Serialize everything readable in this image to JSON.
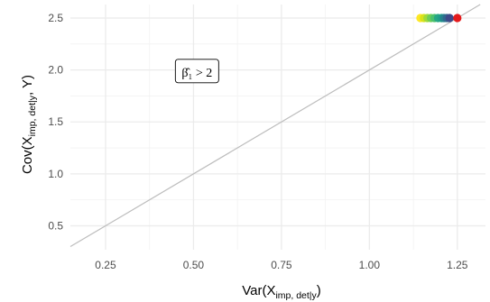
{
  "chart_data": {
    "type": "scatter",
    "title": "",
    "xlabel": {
      "main": "Var(X",
      "sub": "imp, det|y",
      "close": ")"
    },
    "ylabel": {
      "main": "Cov(X",
      "sub": "imp, det|y",
      "close": ", Y)"
    },
    "xlim": [
      0.15,
      1.33
    ],
    "ylim": [
      0.27,
      2.63
    ],
    "x_ticks": [
      0.25,
      0.5,
      0.75,
      1.0,
      1.25
    ],
    "x_tick_labels": [
      "0.25",
      "0.50",
      "0.75",
      "1.00",
      "1.25"
    ],
    "y_ticks": [
      0.5,
      1.0,
      1.5,
      2.0,
      2.5
    ],
    "y_tick_labels": [
      "0.5",
      "1.0",
      "1.5",
      "2.0",
      "2.5"
    ],
    "grid": true,
    "reference_line": {
      "type": "y = 2x",
      "slope": 2,
      "intercept": 0,
      "color": "#bdbdbd"
    },
    "annotation": {
      "x": 0.51,
      "y": 1.99,
      "label": "β̂₁ > 2"
    },
    "points": [
      {
        "x": 1.145,
        "y": 2.5,
        "color": "#fde725"
      },
      {
        "x": 1.155,
        "y": 2.5,
        "color": "#d8e219"
      },
      {
        "x": 1.165,
        "y": 2.5,
        "color": "#a0da39"
      },
      {
        "x": 1.175,
        "y": 2.5,
        "color": "#6ece58"
      },
      {
        "x": 1.185,
        "y": 2.5,
        "color": "#4ac16d"
      },
      {
        "x": 1.195,
        "y": 2.5,
        "color": "#26a784"
      },
      {
        "x": 1.205,
        "y": 2.5,
        "color": "#1f9e89"
      },
      {
        "x": 1.212,
        "y": 2.5,
        "color": "#26828e"
      },
      {
        "x": 1.22,
        "y": 2.5,
        "color": "#31688e"
      },
      {
        "x": 1.228,
        "y": 2.5,
        "color": "#3e4989"
      },
      {
        "x": 1.25,
        "y": 2.5,
        "color": "#e41a1c"
      }
    ]
  }
}
